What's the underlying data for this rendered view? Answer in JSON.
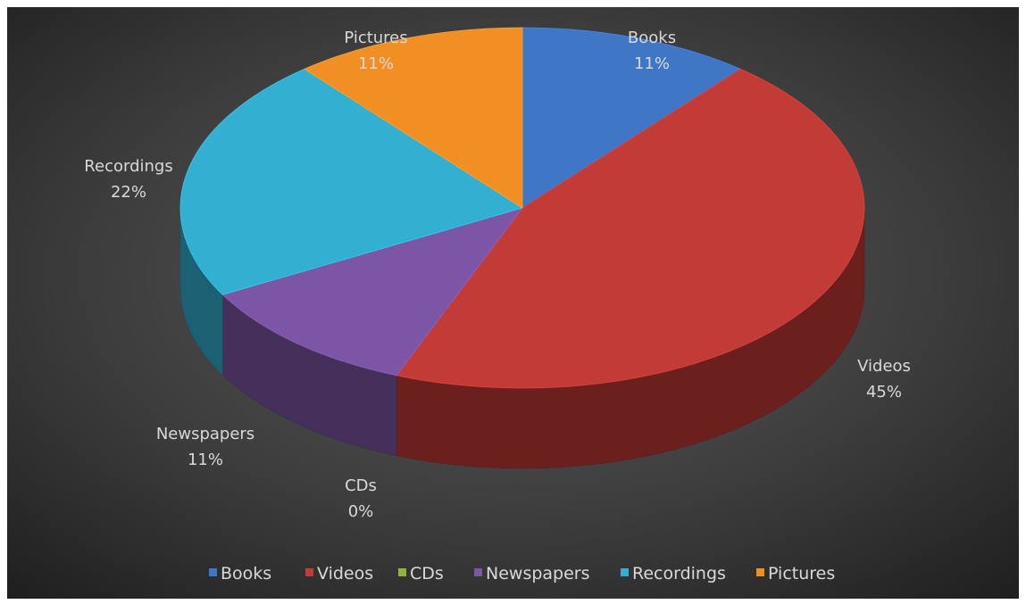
{
  "chart_data": {
    "type": "pie",
    "style": "3d",
    "title": "",
    "categories": [
      "Books",
      "Videos",
      "CDs",
      "Newspapers",
      "Recordings",
      "Pictures"
    ],
    "values": [
      11,
      45,
      0,
      11,
      22,
      11
    ],
    "labels": [
      "11%",
      "45%",
      "0%",
      "11%",
      "22%",
      "11%"
    ],
    "colors": [
      "#3f76c6",
      "#c23b37",
      "#8fb33c",
      "#7d55a6",
      "#33afd2",
      "#f18f25"
    ],
    "legend": {
      "position": "bottom",
      "entries": [
        "Books",
        "Videos",
        "CDs",
        "Newspapers",
        "Recordings",
        "Pictures"
      ]
    }
  }
}
